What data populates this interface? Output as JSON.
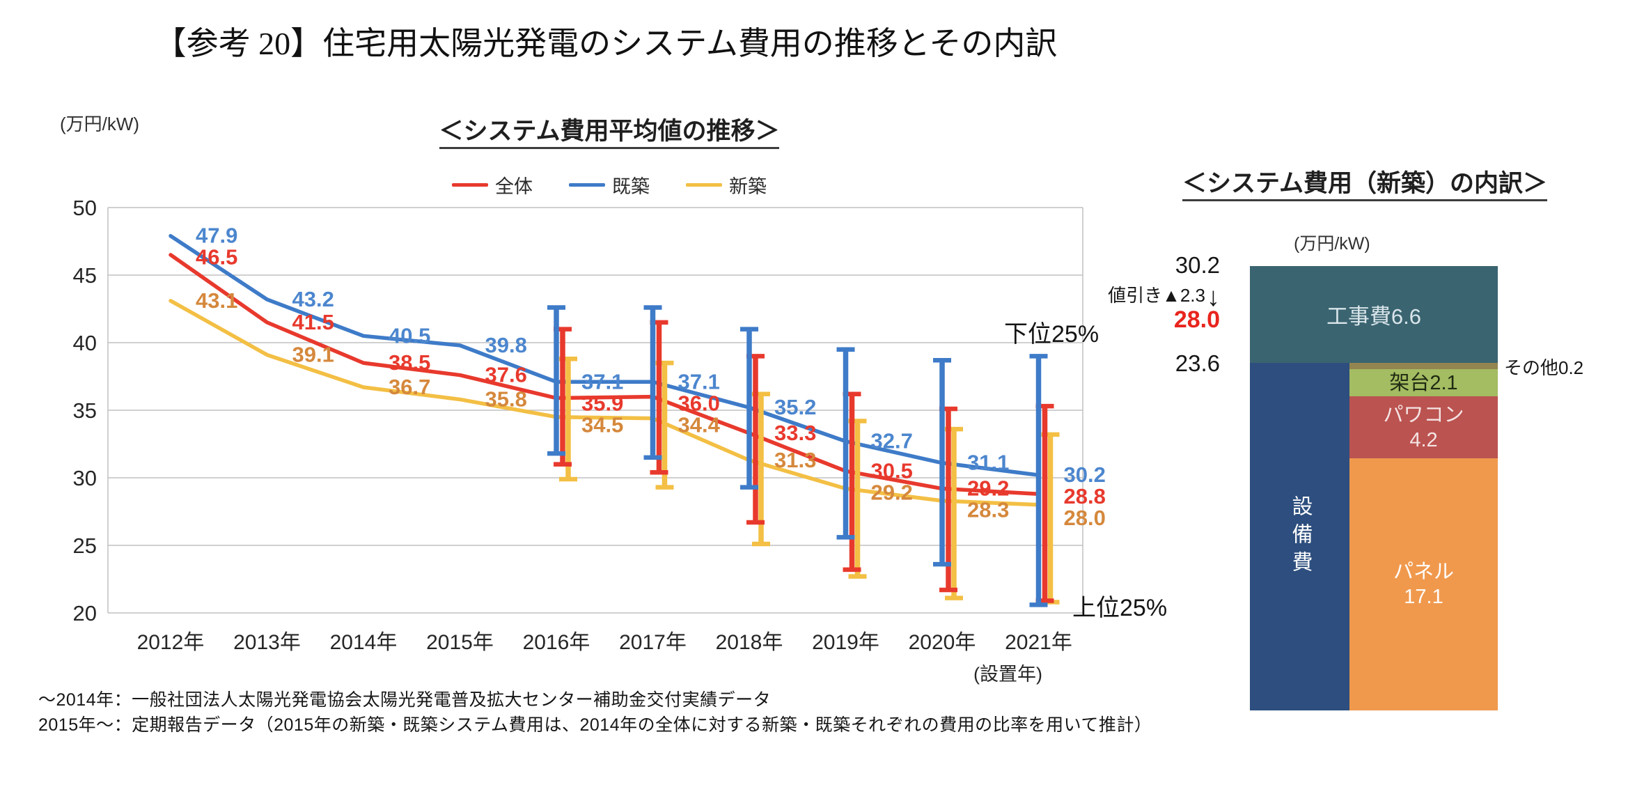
{
  "page": {
    "title": "【参考 20】住宅用太陽光発電のシステム費用の推移とその内訳"
  },
  "footnotes": [
    "～2014年：一般社団法人太陽光発電協会太陽光発電普及拡大センター補助金交付実績データ",
    "2015年～：定期報告データ（2015年の新築・既築システム費用は、2014年の全体に対する新築・既築それぞれの費用の比率を用いて推計）"
  ],
  "bar_chart": {
    "total_label": "30.2",
    "discount_label": "値引き▲2.3",
    "discount_arrow": "↓",
    "after_discount_label": "28.0",
    "equipment_total_label": "23.6",
    "other_label": "その他0.2"
  },
  "chart_data": [
    {
      "type": "line",
      "title": "＜システム費用平均値の推移＞",
      "ylabel": "(万円/kW)",
      "xlabel": "(設置年)",
      "categories": [
        "2012年",
        "2013年",
        "2014年",
        "2015年",
        "2016年",
        "2017年",
        "2018年",
        "2019年",
        "2020年",
        "2021年"
      ],
      "ylim": [
        20,
        50
      ],
      "ytick_step": 5,
      "grid": true,
      "legend_position": "top",
      "series": [
        {
          "name": "全体",
          "color": "#E8392D",
          "label_color": "#E8392D",
          "values": [
            46.5,
            41.5,
            38.5,
            37.6,
            35.9,
            36.0,
            33.3,
            30.5,
            29.2,
            28.8
          ]
        },
        {
          "name": "既築",
          "color": "#3E7BC8",
          "label_color": "#4C86CE",
          "values": [
            47.9,
            43.2,
            40.5,
            39.8,
            37.1,
            37.1,
            35.2,
            32.7,
            31.1,
            30.2
          ]
        },
        {
          "name": "新築",
          "color": "#F3BF44",
          "label_color": "#D5883C",
          "values": [
            43.1,
            39.1,
            36.7,
            35.8,
            34.5,
            34.4,
            31.3,
            29.2,
            28.3,
            28.0
          ]
        }
      ],
      "whiskers": {
        "start_category_index": 4,
        "series": [
          {
            "name": "全体",
            "low": [
              31.0,
              30.4,
              26.7,
              23.2,
              21.7,
              20.9
            ],
            "high": [
              41.0,
              41.5,
              39.0,
              36.2,
              35.1,
              35.3
            ]
          },
          {
            "name": "既築",
            "low": [
              31.8,
              31.5,
              29.3,
              25.6,
              23.6,
              20.6
            ],
            "high": [
              42.6,
              42.6,
              41.0,
              39.5,
              38.7,
              39.0
            ]
          },
          {
            "name": "新築",
            "low": [
              29.9,
              29.3,
              25.1,
              22.7,
              21.1,
              20.8
            ],
            "high": [
              38.8,
              38.5,
              36.2,
              34.2,
              33.6,
              33.2
            ]
          }
        ]
      },
      "annotations": [
        "下位25%",
        "上位25%"
      ]
    },
    {
      "type": "bar",
      "title": "＜システム費用（新築）の内訳＞",
      "ylabel": "(万円/kW)",
      "total": 30.2,
      "discount": 2.3,
      "after_discount": 28.0,
      "equipment_subtotal": 23.6,
      "segments": [
        {
          "name": "工事費",
          "value": 6.6,
          "label": "工事費6.6",
          "color": "#3A6470",
          "text_color": "#D9E5EA",
          "column": "full"
        },
        {
          "name": "その他",
          "value": 0.2,
          "label": "その他0.2",
          "color": "#93854F",
          "column": "right",
          "label_outside": true
        },
        {
          "name": "架台",
          "value": 2.1,
          "label": "架台2.1",
          "color": "#A4BC62",
          "text_color": "#1F2A12",
          "column": "right"
        },
        {
          "name": "パワコン",
          "value": 4.2,
          "label": "パワコン\n4.2",
          "color": "#BB5350",
          "text_color": "#F4E4E3",
          "column": "right"
        },
        {
          "name": "パネル",
          "value": 17.1,
          "label": "パネル\n17.1",
          "color": "#F0994D",
          "text_color": "#FFFFFF",
          "column": "right"
        },
        {
          "name": "設備費",
          "value": 23.6,
          "label": "設備費",
          "color": "#2D4E7E",
          "text_color": "#FFFFFF",
          "column": "left"
        }
      ]
    }
  ]
}
